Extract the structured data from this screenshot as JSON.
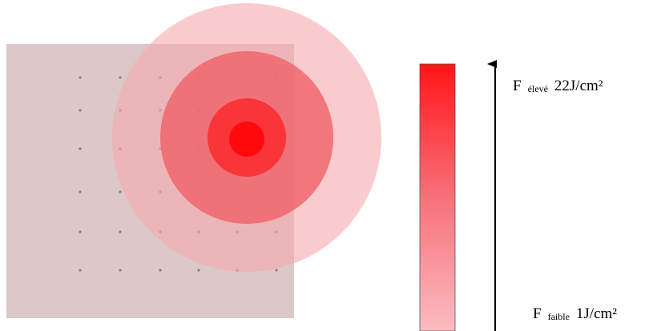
{
  "labels": {
    "high": {
      "symbol": "F",
      "subscript": "élevé",
      "value": "22J/cm²"
    },
    "low": {
      "symbol": "F",
      "subscript": "faible",
      "value": "1J/cm²"
    }
  }
}
